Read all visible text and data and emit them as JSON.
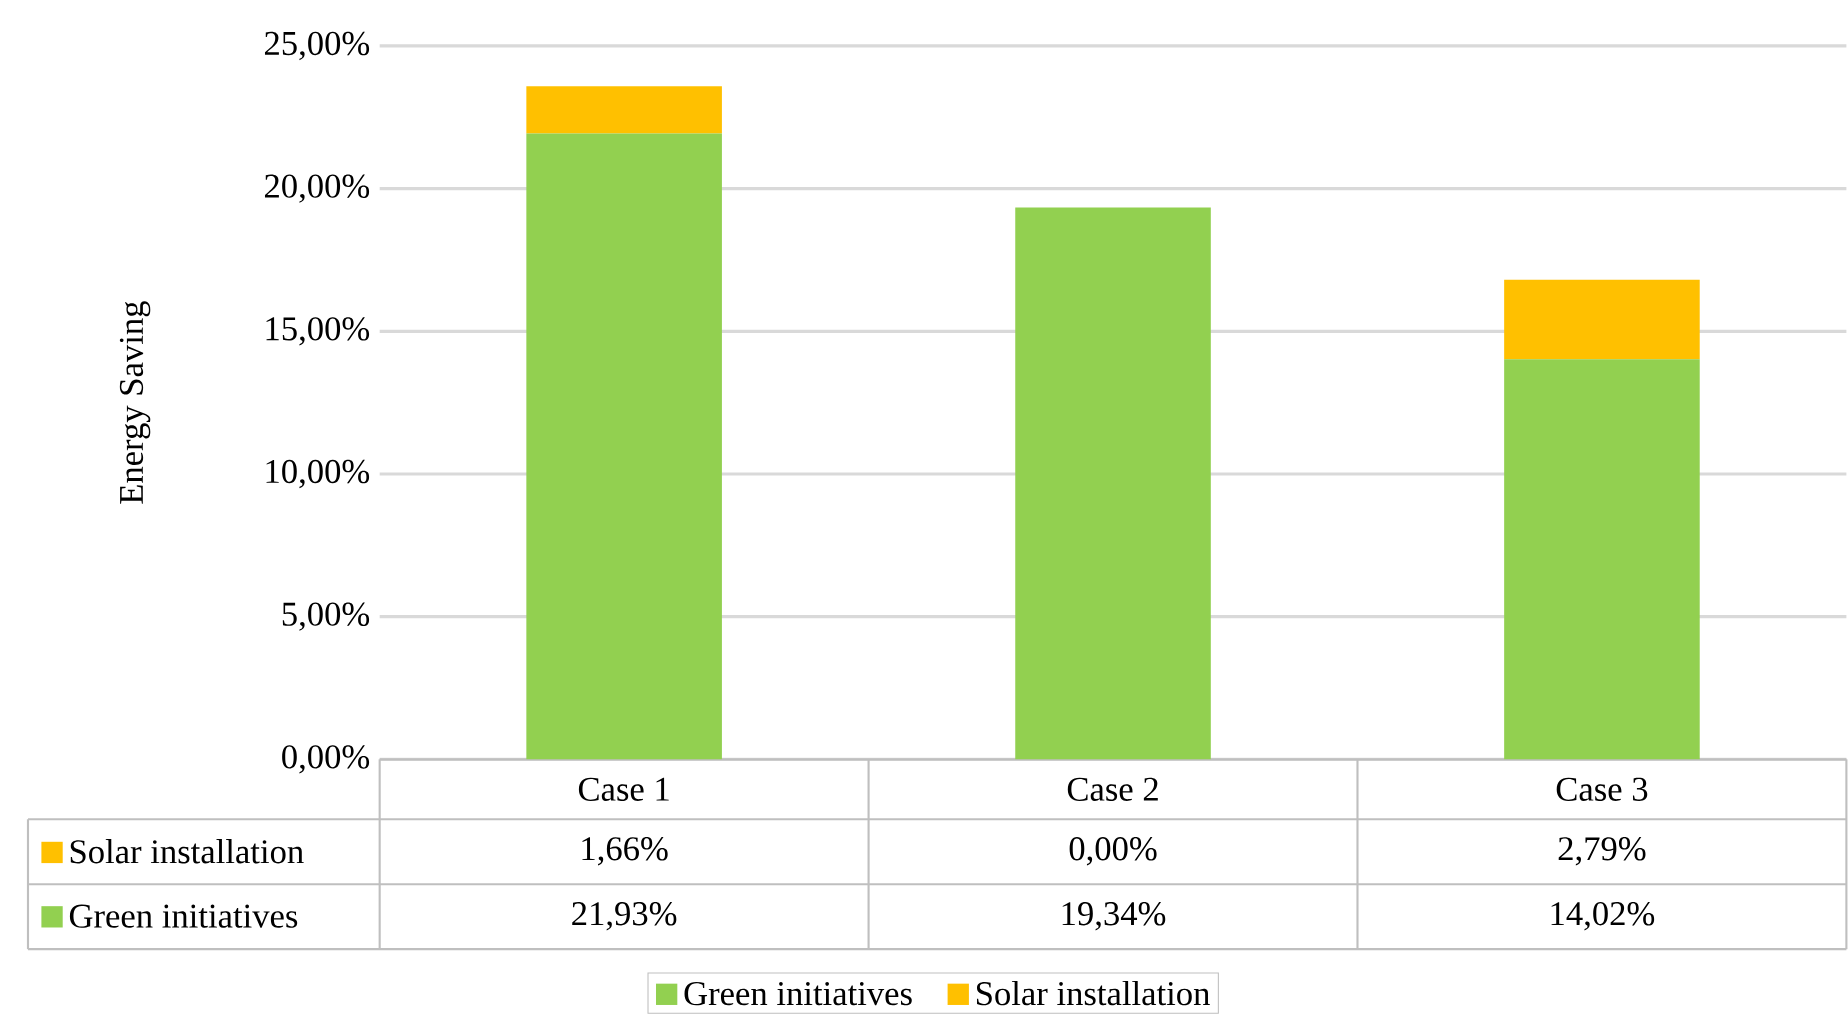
{
  "chart_data": {
    "type": "bar",
    "stacked": true,
    "ylabel": "Energy Saving",
    "categories": [
      "Case 1",
      "Case 2",
      "Case 3"
    ],
    "series": [
      {
        "name": "Green initiatives",
        "color": "#92d050",
        "values": [
          21.93,
          19.34,
          14.02
        ],
        "value_labels": [
          "21,93%",
          "19,34%",
          "14,02%"
        ]
      },
      {
        "name": "Solar installation",
        "color": "#ffc000",
        "values": [
          1.66,
          0.0,
          2.79
        ],
        "value_labels": [
          "1,66%",
          "0,00%",
          "2,79%"
        ]
      }
    ],
    "ylim": [
      0,
      25
    ],
    "yticks": [
      {
        "value": 0,
        "label": "0,00%"
      },
      {
        "value": 5,
        "label": "5,00%"
      },
      {
        "value": 10,
        "label": "10,00%"
      },
      {
        "value": 15,
        "label": "15,00%"
      },
      {
        "value": 20,
        "label": "20,00%"
      },
      {
        "value": 25,
        "label": "25,00%"
      }
    ],
    "grid": "y",
    "legend": "bottom"
  }
}
